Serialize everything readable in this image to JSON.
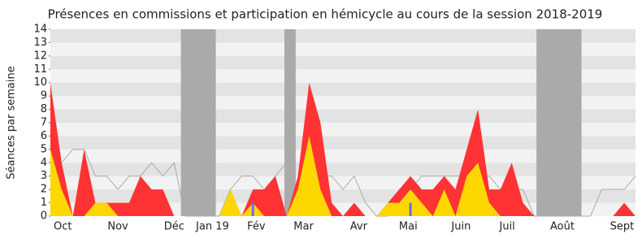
{
  "chart_data": {
    "type": "area",
    "title": "Présences en commissions et participation en hémicycle au cours de la session 2018-2019",
    "y_label": "Séances par semaine",
    "x": [
      0,
      1,
      2,
      3,
      4,
      5,
      6,
      7,
      8,
      9,
      10,
      11,
      12,
      13,
      14,
      15,
      16,
      17,
      18,
      19,
      20,
      21,
      22,
      23,
      24,
      25,
      26,
      27,
      28,
      29,
      30,
      31,
      32,
      33,
      34,
      35,
      36,
      37,
      38,
      39,
      40,
      41,
      42,
      43,
      44,
      45,
      46,
      47,
      48,
      49,
      50,
      51,
      52
    ],
    "xlim": [
      0,
      52
    ],
    "xticks": [
      {
        "value": 1.1,
        "label": "Oct"
      },
      {
        "value": 6.0,
        "label": "Nov"
      },
      {
        "value": 11.0,
        "label": "Déc"
      },
      {
        "value": 14.4,
        "label": "Jan 19"
      },
      {
        "value": 18.3,
        "label": "Fév"
      },
      {
        "value": 22.5,
        "label": "Mar"
      },
      {
        "value": 27.4,
        "label": "Avr"
      },
      {
        "value": 31.8,
        "label": "Mai"
      },
      {
        "value": 36.5,
        "label": "Juin"
      },
      {
        "value": 40.6,
        "label": "Juil"
      },
      {
        "value": 45.5,
        "label": "Août"
      },
      {
        "value": 50.8,
        "label": "Sept"
      }
    ],
    "ylim": [
      0,
      14
    ],
    "yticks": [
      0,
      1,
      2,
      3,
      4,
      5,
      6,
      7,
      8,
      9,
      10,
      11,
      12,
      13,
      14
    ],
    "stripe_colors": [
      "#f2f2f2",
      "#e3e3e3"
    ],
    "shaded_ranges": [
      [
        11.6,
        14.7
      ],
      [
        20.8,
        21.8
      ],
      [
        43.2,
        47.2
      ]
    ],
    "shade_color": "#aaaaaa",
    "series": [
      {
        "kind": "line",
        "color": "#aaaaaa",
        "values": [
          4,
          4,
          5,
          5,
          3,
          3,
          2,
          3,
          3,
          4,
          3,
          4,
          0,
          0,
          0,
          0,
          2,
          3,
          3,
          2,
          3,
          4,
          0,
          1,
          3,
          3,
          2,
          3,
          1,
          0,
          0,
          2,
          2,
          3,
          3,
          3,
          3,
          3,
          3,
          3,
          2,
          2,
          2,
          0,
          0,
          0,
          0,
          0,
          0,
          2,
          2,
          2,
          3
        ]
      },
      {
        "kind": "area",
        "color": "#ff3333",
        "values": [
          10,
          4,
          0,
          5,
          1,
          1,
          1,
          1,
          3,
          2,
          2,
          0,
          0,
          0,
          0,
          0,
          2,
          0,
          2,
          2,
          3,
          0,
          3,
          10,
          7,
          1,
          0,
          1,
          0,
          0,
          1,
          2,
          3,
          2,
          2,
          3,
          2,
          5,
          8,
          2,
          2,
          4,
          1,
          0,
          0,
          0,
          0,
          0,
          0,
          0,
          0,
          1,
          0
        ]
      },
      {
        "kind": "area",
        "color": "#ffd700",
        "values": [
          5,
          2,
          0,
          0,
          1,
          1,
          0,
          0,
          0,
          0,
          0,
          0,
          0,
          0,
          0,
          0,
          2,
          0,
          1,
          0,
          0,
          0,
          2,
          6,
          2,
          0,
          0,
          0,
          0,
          0,
          1,
          1,
          2,
          1,
          0,
          2,
          0,
          3,
          4,
          1,
          0,
          0,
          0,
          0,
          0,
          0,
          0,
          0,
          0,
          0,
          0,
          0,
          0
        ]
      },
      {
        "kind": "bar",
        "color": "#6a6aff",
        "values": [
          0,
          0,
          0,
          0,
          0,
          0,
          0,
          0,
          0,
          0,
          0,
          0,
          0,
          0,
          0,
          0,
          0,
          0,
          1,
          0,
          0,
          0,
          0,
          0,
          0,
          0,
          0,
          0,
          0,
          0,
          0,
          0,
          1,
          0,
          0,
          0,
          0,
          0,
          0,
          0,
          0,
          0,
          0,
          0,
          0,
          0,
          0,
          0,
          0,
          0,
          0,
          0,
          0
        ]
      }
    ]
  }
}
